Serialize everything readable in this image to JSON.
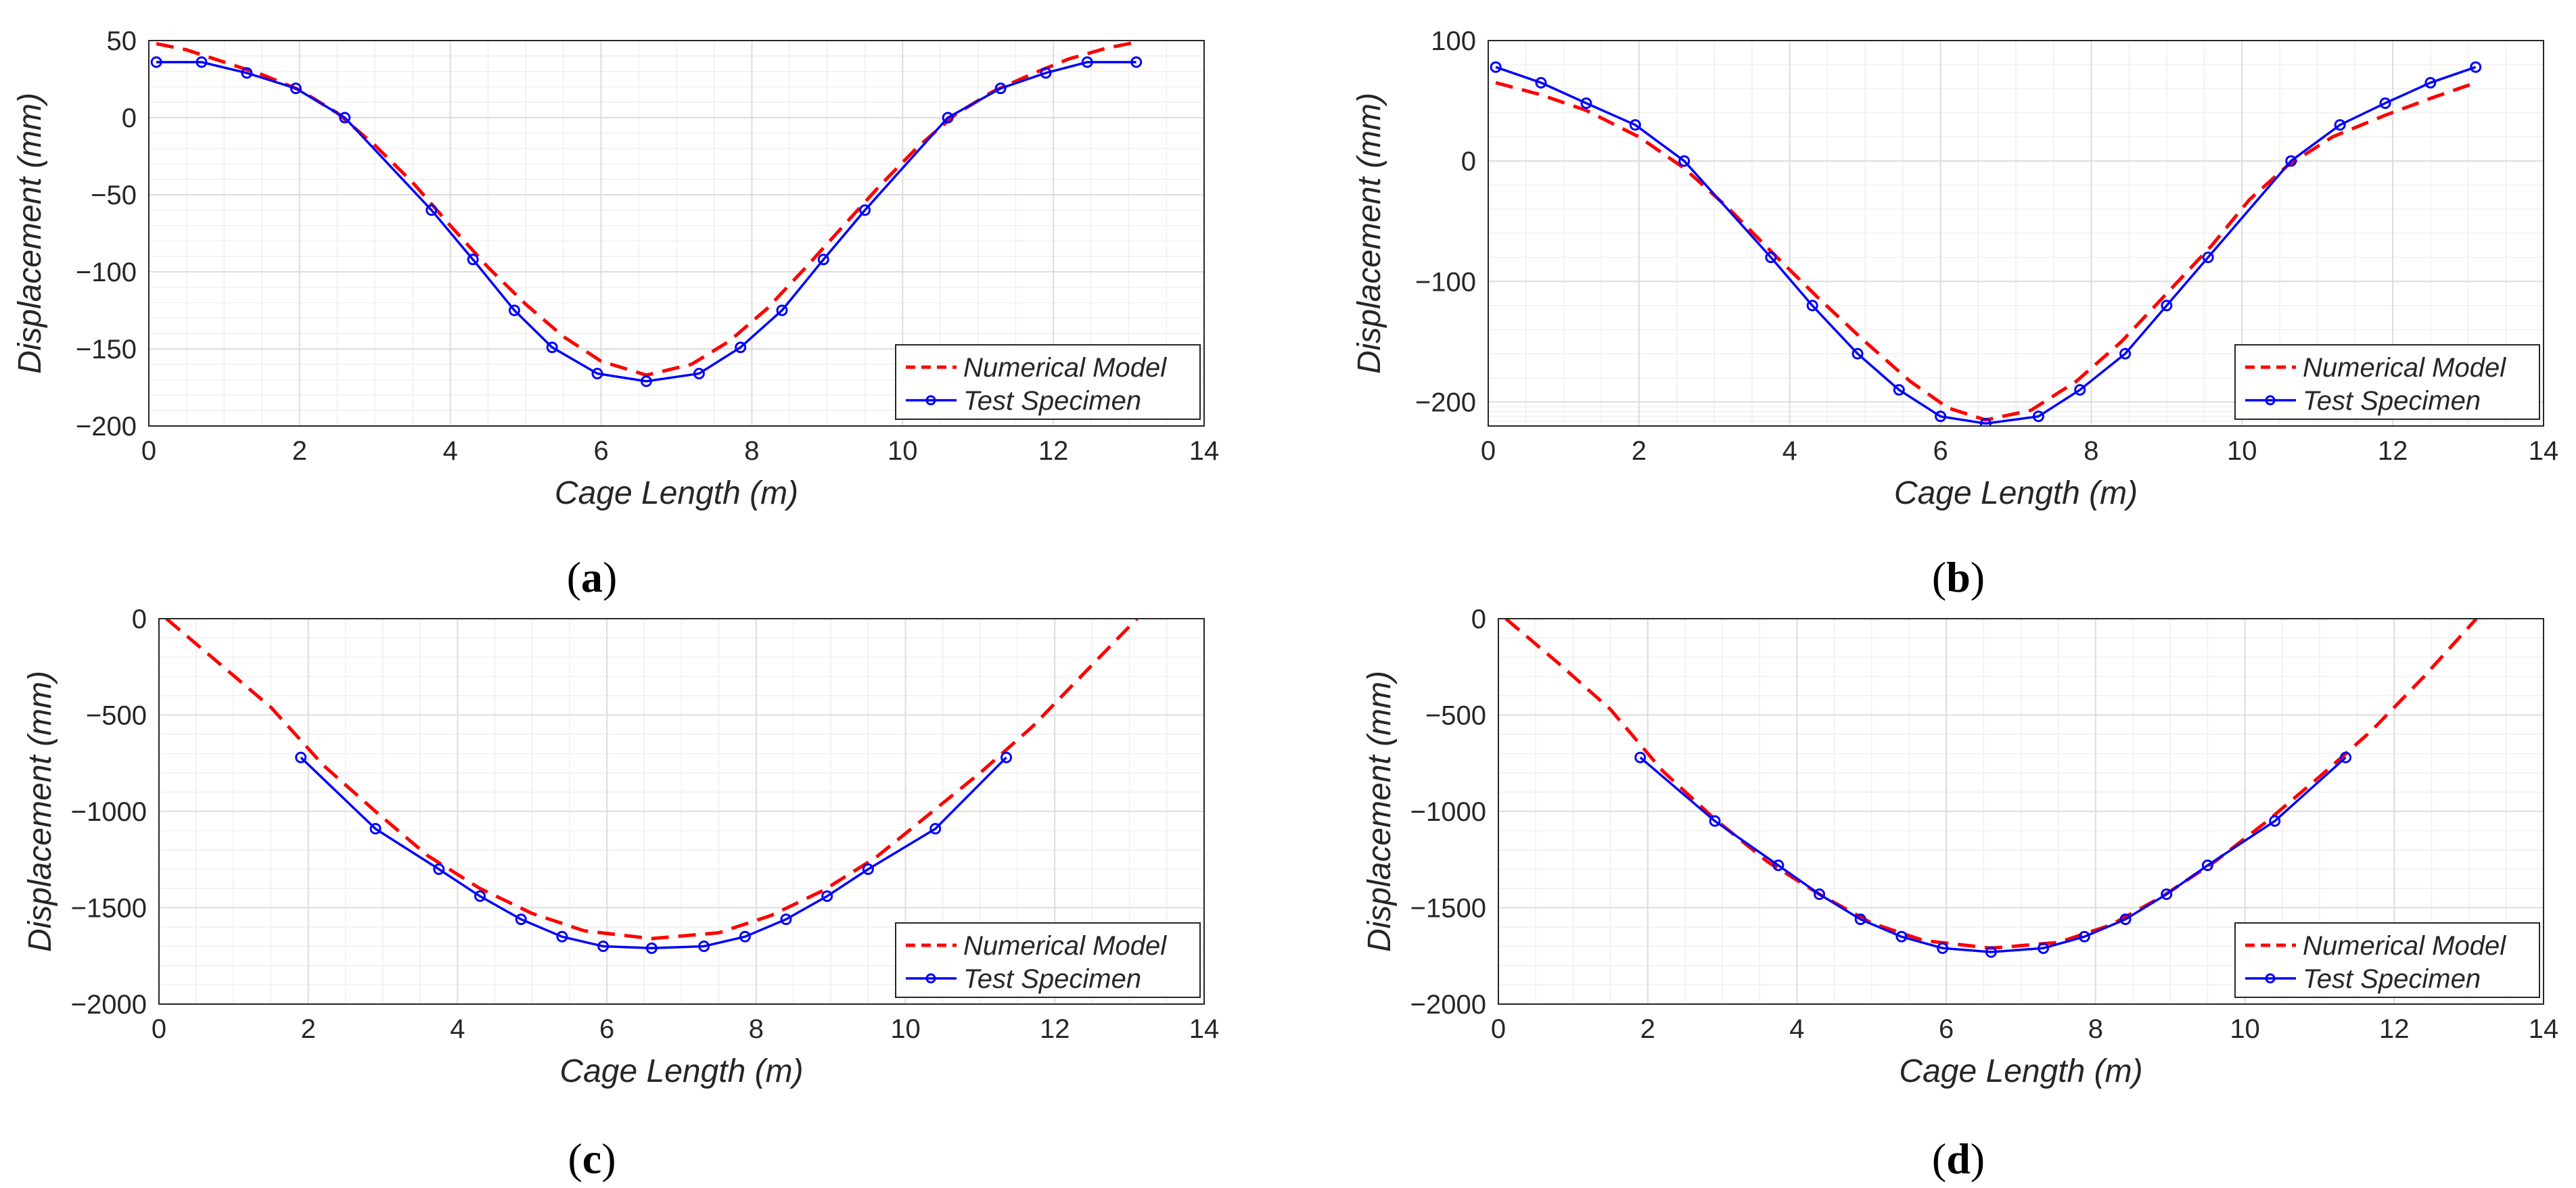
{
  "figure": {
    "colors": {
      "numerical": "#ff0000",
      "test": "#0000ff",
      "axis": "#262626",
      "grid_major": "#dcdcdc",
      "grid_minor": "#efefef"
    }
  },
  "chart_data": [
    {
      "type": "line",
      "caption": "a",
      "xlabel": "Cage Length (m)",
      "ylabel": "Displacement (mm)",
      "xlim": [
        0,
        14
      ],
      "ylim": [
        -200,
        50
      ],
      "xticks": [
        0,
        2,
        4,
        6,
        8,
        10,
        12,
        14
      ],
      "yticks": [
        50,
        0,
        -50,
        -100,
        -150,
        -200
      ],
      "ytick_labels": [
        "50",
        "0",
        "−50",
        "−100",
        "−150",
        "−200"
      ],
      "legend_position": "bottom-right",
      "grid": true,
      "series": [
        {
          "name": "Numerical Model",
          "style": "dashed",
          "color": "#ff0000",
          "x": [
            0.1,
            0.5,
            1.0,
            1.5,
            2.0,
            2.5,
            3.0,
            3.5,
            4.0,
            4.5,
            5.0,
            5.5,
            6.0,
            6.6,
            7.2,
            7.7,
            8.2,
            8.7,
            9.2,
            9.7,
            10.2,
            10.7,
            11.2,
            11.7,
            12.2,
            12.7,
            13.1
          ],
          "y": [
            48,
            44,
            36,
            28,
            18,
            3,
            -18,
            -42,
            -70,
            -97,
            -121,
            -142,
            -158,
            -167,
            -160,
            -145,
            -124,
            -98,
            -71,
            -44,
            -19,
            2,
            17,
            28,
            38,
            45,
            49
          ]
        },
        {
          "name": "Test Specimen",
          "style": "solid-markers",
          "color": "#0000ff",
          "x": [
            0.1,
            0.7,
            1.3,
            1.95,
            2.6,
            3.75,
            4.3,
            4.85,
            5.35,
            5.95,
            6.6,
            7.3,
            7.85,
            8.4,
            8.95,
            9.5,
            10.6,
            11.3,
            11.9,
            12.45,
            13.1
          ],
          "y": [
            36,
            36,
            29,
            19,
            0,
            -60,
            -92,
            -125,
            -149,
            -166,
            -171,
            -166,
            -149,
            -125,
            -92,
            -60,
            0,
            19,
            29,
            36,
            36
          ]
        }
      ]
    },
    {
      "type": "line",
      "caption": "b",
      "xlabel": "Cage Length (m)",
      "ylabel": "Displacement (mm)",
      "xlim": [
        0,
        14
      ],
      "ylim": [
        -220,
        100
      ],
      "xticks": [
        0,
        2,
        4,
        6,
        8,
        10,
        12,
        14
      ],
      "yticks": [
        100,
        0,
        -100,
        -200
      ],
      "ytick_labels": [
        "100",
        "0",
        "−100",
        "−200"
      ],
      "legend_position": "bottom-right",
      "grid": true,
      "series": [
        {
          "name": "Numerical Model",
          "style": "dashed",
          "color": "#ff0000",
          "x": [
            0.1,
            0.7,
            1.3,
            2.0,
            2.6,
            3.2,
            3.8,
            4.4,
            5.0,
            5.6,
            6.1,
            6.6,
            7.2,
            7.8,
            8.4,
            9.0,
            9.6,
            10.1,
            10.6,
            11.2,
            11.9,
            12.5,
            13.1
          ],
          "y": [
            65,
            55,
            42,
            20,
            -6,
            -40,
            -78,
            -115,
            -150,
            -183,
            -205,
            -215,
            -207,
            -183,
            -150,
            -110,
            -70,
            -32,
            -4,
            20,
            38,
            52,
            65
          ]
        },
        {
          "name": "Test Specimen",
          "style": "solid-markers",
          "color": "#0000ff",
          "x": [
            0.1,
            0.7,
            1.3,
            1.95,
            2.6,
            3.75,
            4.3,
            4.9,
            5.45,
            6.0,
            6.6,
            7.3,
            7.85,
            8.45,
            9.0,
            9.55,
            10.65,
            11.3,
            11.9,
            12.5,
            13.1
          ],
          "y": [
            78,
            65,
            48,
            30,
            0,
            -80,
            -120,
            -160,
            -190,
            -212,
            -218,
            -212,
            -190,
            -160,
            -120,
            -80,
            0,
            30,
            48,
            65,
            78
          ]
        }
      ]
    },
    {
      "type": "line",
      "caption": "c",
      "xlabel": "Cage Length (m)",
      "ylabel": "Displacement (mm)",
      "xlim": [
        0,
        14
      ],
      "ylim": [
        -2000,
        0
      ],
      "xticks": [
        0,
        2,
        4,
        6,
        8,
        10,
        12,
        14
      ],
      "yticks": [
        0,
        -500,
        -1000,
        -1500,
        -2000
      ],
      "ytick_labels": [
        "0",
        "−500",
        "−1000",
        "−1500",
        "−2000"
      ],
      "legend_position": "bottom-right",
      "grid": true,
      "series": [
        {
          "name": "Numerical Model",
          "style": "dashed",
          "color": "#ff0000",
          "x": [
            0.1,
            0.8,
            1.5,
            2.2,
            2.9,
            3.6,
            4.3,
            5.0,
            5.7,
            6.6,
            7.5,
            8.2,
            8.9,
            9.6,
            10.3,
            11.0,
            11.7,
            12.4,
            13.1
          ],
          "y": [
            0,
            -230,
            -460,
            -760,
            -1000,
            -1230,
            -1400,
            -1530,
            -1620,
            -1660,
            -1630,
            -1540,
            -1410,
            -1240,
            -1020,
            -800,
            -560,
            -280,
            0
          ]
        },
        {
          "name": "Test Specimen",
          "style": "solid-markers",
          "color": "#0000ff",
          "x": [
            1.9,
            2.9,
            3.75,
            4.3,
            4.85,
            5.4,
            5.95,
            6.6,
            7.3,
            7.85,
            8.4,
            8.95,
            9.5,
            10.4,
            11.35
          ],
          "y": [
            -720,
            -1090,
            -1300,
            -1440,
            -1560,
            -1650,
            -1700,
            -1710,
            -1700,
            -1650,
            -1560,
            -1440,
            -1300,
            -1090,
            -720
          ]
        }
      ]
    },
    {
      "type": "line",
      "caption": "d",
      "xlabel": "Cage Length (m)",
      "ylabel": "Displacement (mm)",
      "xlim": [
        0,
        14
      ],
      "ylim": [
        -2000,
        0
      ],
      "xticks": [
        0,
        2,
        4,
        6,
        8,
        10,
        12,
        14
      ],
      "yticks": [
        0,
        -500,
        -1000,
        -1500,
        -2000
      ],
      "ytick_labels": [
        "0",
        "−500",
        "−1000",
        "−1500",
        "−2000"
      ],
      "legend_position": "bottom-right",
      "grid": true,
      "series": [
        {
          "name": "Numerical Model",
          "style": "dashed",
          "color": "#ff0000",
          "x": [
            0.1,
            0.8,
            1.5,
            2.2,
            2.9,
            3.6,
            4.3,
            5.0,
            5.7,
            6.6,
            7.5,
            8.2,
            8.9,
            9.6,
            10.3,
            11.0,
            11.7,
            12.4,
            13.1
          ],
          "y": [
            0,
            -230,
            -470,
            -790,
            -1040,
            -1260,
            -1430,
            -1580,
            -1670,
            -1710,
            -1680,
            -1590,
            -1440,
            -1260,
            -1050,
            -820,
            -580,
            -300,
            0
          ]
        },
        {
          "name": "Test Specimen",
          "style": "solid-markers",
          "color": "#0000ff",
          "x": [
            1.9,
            2.9,
            3.75,
            4.3,
            4.85,
            5.4,
            5.95,
            6.6,
            7.3,
            7.85,
            8.4,
            8.95,
            9.5,
            10.4,
            11.35
          ],
          "y": [
            -720,
            -1050,
            -1280,
            -1430,
            -1560,
            -1650,
            -1710,
            -1730,
            -1710,
            -1650,
            -1560,
            -1430,
            -1280,
            -1050,
            -720
          ]
        }
      ]
    }
  ]
}
